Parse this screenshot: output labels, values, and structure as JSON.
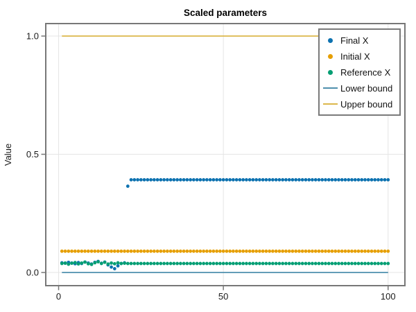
{
  "chart_data": {
    "type": "scatter",
    "title": "Scaled parameters",
    "xlabel": "",
    "ylabel": "Value",
    "xlim": [
      -3.9,
      105.1
    ],
    "ylim": [
      -0.0557,
      1.0528
    ],
    "grid": true,
    "legend_position": "top-right",
    "x_ticks": [
      0,
      50,
      100
    ],
    "x_tick_labels": [
      "0",
      "50",
      "100"
    ],
    "y_ticks": [
      0.0,
      0.5,
      1.0
    ],
    "y_tick_labels": [
      "0.0",
      "0.5",
      "1.0"
    ],
    "style": {
      "spine_color": "#777777",
      "grid_color": "#e5e5e5",
      "background": "#ffffff",
      "title_color": "#000000",
      "tick_label_color": "#1a1a1a"
    },
    "x": [
      1,
      2,
      3,
      4,
      5,
      6,
      7,
      8,
      9,
      10,
      11,
      12,
      13,
      14,
      15,
      16,
      17,
      18,
      19,
      20,
      21,
      22,
      23,
      24,
      25,
      26,
      27,
      28,
      29,
      30,
      31,
      32,
      33,
      34,
      35,
      36,
      37,
      38,
      39,
      40,
      41,
      42,
      43,
      44,
      45,
      46,
      47,
      48,
      49,
      50,
      51,
      52,
      53,
      54,
      55,
      56,
      57,
      58,
      59,
      60,
      61,
      62,
      63,
      64,
      65,
      66,
      67,
      68,
      69,
      70,
      71,
      72,
      73,
      74,
      75,
      76,
      77,
      78,
      79,
      80,
      81,
      82,
      83,
      84,
      85,
      86,
      87,
      88,
      89,
      90,
      91,
      92,
      93,
      94,
      95,
      96,
      97,
      98,
      99,
      100
    ],
    "series": [
      {
        "name": "Final X",
        "type": "scatter",
        "marker": "circle",
        "color": "#0d72b0",
        "values": [
          0.041,
          0.039,
          0.043,
          0.04,
          0.037,
          0.042,
          0.038,
          0.044,
          0.04,
          0.036,
          0.043,
          0.047,
          0.039,
          0.044,
          0.032,
          0.023,
          0.016,
          0.028,
          0.038,
          0.041,
          0.365,
          0.392,
          0.392,
          0.392,
          0.392,
          0.392,
          0.392,
          0.392,
          0.392,
          0.392,
          0.392,
          0.392,
          0.392,
          0.392,
          0.392,
          0.392,
          0.392,
          0.392,
          0.392,
          0.392,
          0.392,
          0.392,
          0.392,
          0.392,
          0.392,
          0.392,
          0.392,
          0.392,
          0.392,
          0.392,
          0.392,
          0.392,
          0.392,
          0.392,
          0.392,
          0.392,
          0.392,
          0.392,
          0.392,
          0.392,
          0.392,
          0.392,
          0.392,
          0.392,
          0.392,
          0.392,
          0.392,
          0.392,
          0.392,
          0.392,
          0.392,
          0.392,
          0.392,
          0.392,
          0.392,
          0.392,
          0.392,
          0.392,
          0.392,
          0.392,
          0.392,
          0.392,
          0.392,
          0.392,
          0.392,
          0.392,
          0.392,
          0.392,
          0.392,
          0.392,
          0.392,
          0.392,
          0.392,
          0.392,
          0.392,
          0.392,
          0.392,
          0.392,
          0.392,
          0.392
        ]
      },
      {
        "name": "Initial X",
        "type": "scatter",
        "marker": "circle",
        "color": "#e69f00",
        "values": [
          0.09,
          0.09,
          0.09,
          0.09,
          0.09,
          0.09,
          0.09,
          0.09,
          0.09,
          0.09,
          0.09,
          0.09,
          0.09,
          0.09,
          0.09,
          0.09,
          0.09,
          0.09,
          0.09,
          0.09,
          0.09,
          0.09,
          0.09,
          0.09,
          0.09,
          0.09,
          0.09,
          0.09,
          0.09,
          0.09,
          0.09,
          0.09,
          0.09,
          0.09,
          0.09,
          0.09,
          0.09,
          0.09,
          0.09,
          0.09,
          0.09,
          0.09,
          0.09,
          0.09,
          0.09,
          0.09,
          0.09,
          0.09,
          0.09,
          0.09,
          0.09,
          0.09,
          0.09,
          0.09,
          0.09,
          0.09,
          0.09,
          0.09,
          0.09,
          0.09,
          0.09,
          0.09,
          0.09,
          0.09,
          0.09,
          0.09,
          0.09,
          0.09,
          0.09,
          0.09,
          0.09,
          0.09,
          0.09,
          0.09,
          0.09,
          0.09,
          0.09,
          0.09,
          0.09,
          0.09,
          0.09,
          0.09,
          0.09,
          0.09,
          0.09,
          0.09,
          0.09,
          0.09,
          0.09,
          0.09,
          0.09,
          0.09,
          0.09,
          0.09,
          0.09,
          0.09,
          0.09,
          0.09,
          0.09,
          0.09
        ]
      },
      {
        "name": "Reference X",
        "type": "scatter",
        "marker": "circle",
        "color": "#029e73",
        "values": [
          0.038,
          0.04,
          0.035,
          0.039,
          0.042,
          0.036,
          0.04,
          0.044,
          0.037,
          0.034,
          0.041,
          0.045,
          0.038,
          0.043,
          0.036,
          0.04,
          0.037,
          0.041,
          0.038,
          0.039,
          0.038,
          0.038,
          0.038,
          0.038,
          0.038,
          0.038,
          0.038,
          0.038,
          0.038,
          0.038,
          0.038,
          0.038,
          0.038,
          0.038,
          0.038,
          0.038,
          0.038,
          0.038,
          0.038,
          0.038,
          0.038,
          0.038,
          0.038,
          0.038,
          0.038,
          0.038,
          0.038,
          0.038,
          0.038,
          0.038,
          0.038,
          0.038,
          0.038,
          0.038,
          0.038,
          0.038,
          0.038,
          0.038,
          0.038,
          0.038,
          0.038,
          0.038,
          0.038,
          0.038,
          0.038,
          0.038,
          0.038,
          0.038,
          0.038,
          0.038,
          0.038,
          0.038,
          0.038,
          0.038,
          0.038,
          0.038,
          0.038,
          0.038,
          0.038,
          0.038,
          0.038,
          0.038,
          0.038,
          0.038,
          0.038,
          0.038,
          0.038,
          0.038,
          0.038,
          0.038,
          0.038,
          0.038,
          0.038,
          0.038,
          0.038,
          0.038,
          0.038,
          0.038,
          0.038,
          0.038
        ]
      },
      {
        "name": "Lower bound",
        "type": "line",
        "marker": "line",
        "color": "#4e8fad",
        "y": 0.0,
        "x_range": [
          1,
          100
        ]
      },
      {
        "name": "Upper bound",
        "type": "line",
        "marker": "line",
        "color": "#dcb74a",
        "y": 1.0,
        "x_range": [
          1,
          100
        ]
      }
    ]
  }
}
